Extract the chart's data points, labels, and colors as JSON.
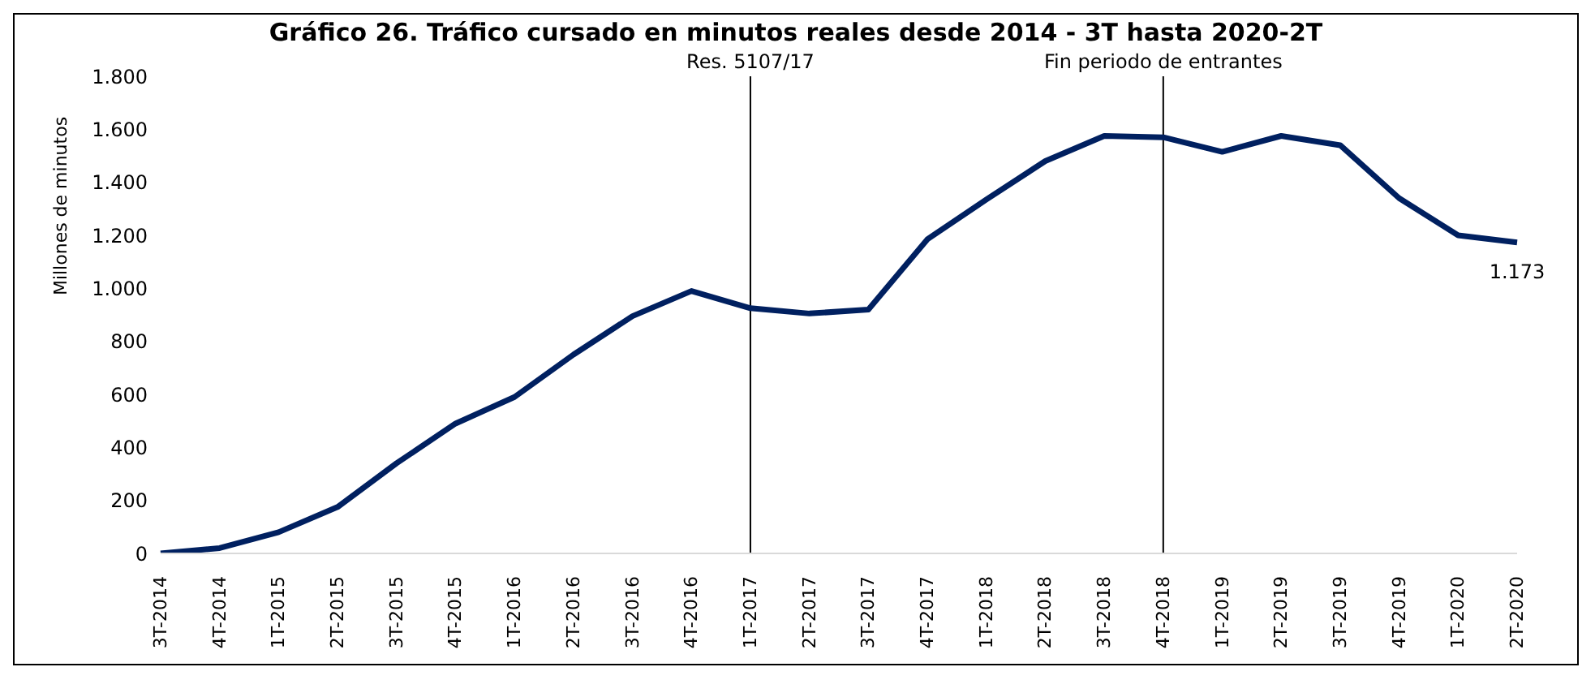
{
  "chart_data": {
    "type": "line",
    "title": "Gráfico 26. Tráfico cursado en minutos reales desde 2014 - 3T hasta 2020-2T",
    "ylabel": "Millones de minutos",
    "categories": [
      "3T-2014",
      "4T-2014",
      "1T-2015",
      "2T-2015",
      "3T-2015",
      "4T-2015",
      "1T-2016",
      "2T-2016",
      "3T-2016",
      "4T-2016",
      "1T-2017",
      "2T-2017",
      "3T-2017",
      "4T-2017",
      "1T-2018",
      "2T-2018",
      "3T-2018",
      "4T-2018",
      "1T-2019",
      "2T-2019",
      "3T-2019",
      "4T-2019",
      "1T-2020",
      "2T-2020"
    ],
    "series": [
      {
        "color": "#002060",
        "values": [
          0,
          20,
          80,
          175,
          340,
          490,
          590,
          750,
          895,
          990,
          925,
          905,
          920,
          1185,
          1335,
          1480,
          1575,
          1570,
          1515,
          1575,
          1540,
          1340,
          1200,
          1173
        ],
        "value_labels": [
          null,
          null,
          null,
          null,
          null,
          null,
          null,
          null,
          null,
          null,
          null,
          null,
          null,
          null,
          null,
          null,
          null,
          null,
          null,
          null,
          null,
          null,
          null,
          "1.173"
        ]
      }
    ],
    "ylim": [
      0,
      1800
    ],
    "yticks": [
      0,
      200,
      400,
      600,
      800,
      {
        "value": 1000,
        "label": "1.000"
      },
      {
        "value": 1200,
        "label": "1.200"
      },
      {
        "value": 1400,
        "label": "1.400"
      },
      {
        "value": 1600,
        "label": "1.600"
      },
      {
        "value": 1800,
        "label": "1.800"
      }
    ],
    "ref_lines": [
      {
        "axis": "x",
        "value": "1T-2017",
        "label": "Res. 5107/17",
        "color": "#000000"
      },
      {
        "axis": "x",
        "value": "4T-2018",
        "label": "Fin periodo de entrantes",
        "color": "#000000"
      }
    ],
    "grid": false,
    "legend": false,
    "marker": "none",
    "line_style": "solid"
  }
}
